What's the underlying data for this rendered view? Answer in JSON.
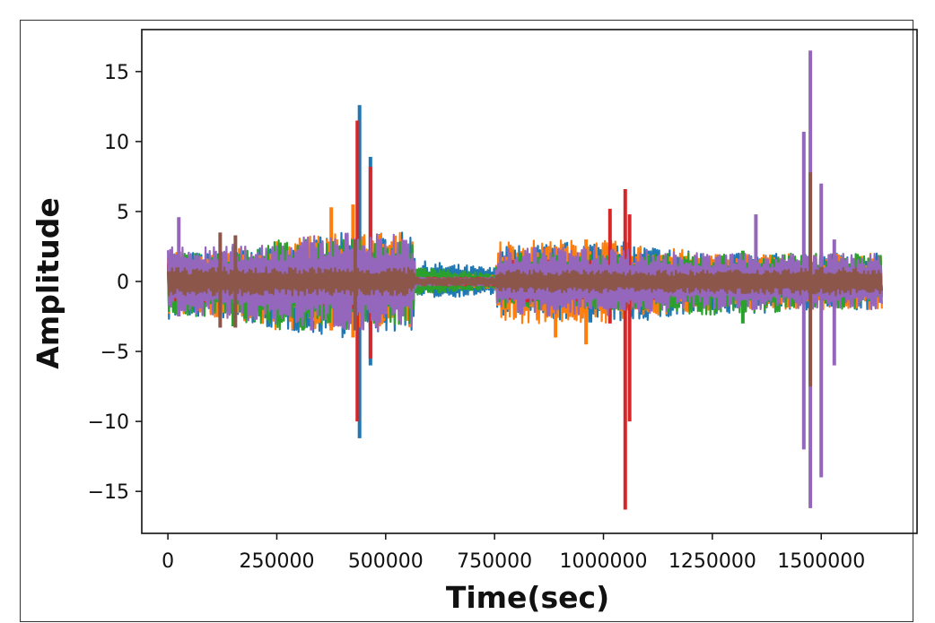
{
  "chart_data": {
    "type": "line",
    "title": "",
    "xlabel": "Time(sec)",
    "ylabel": "Amplitude",
    "xlim": [
      -60000,
      1720000
    ],
    "ylim": [
      -18,
      18
    ],
    "x_ticks": [
      {
        "value": 0,
        "label": "0"
      },
      {
        "value": 250000,
        "label": "250000"
      },
      {
        "value": 500000,
        "label": "500000"
      },
      {
        "value": 750000,
        "label": "750000"
      },
      {
        "value": 1000000,
        "label": "1000000"
      },
      {
        "value": 1250000,
        "label": "1250000"
      },
      {
        "value": 1500000,
        "label": "1500000"
      }
    ],
    "y_ticks": [
      {
        "value": 15,
        "label": "15"
      },
      {
        "value": 10,
        "label": "10"
      },
      {
        "value": 5,
        "label": "5"
      },
      {
        "value": 0,
        "label": "0"
      },
      {
        "value": -5,
        "label": "−5"
      },
      {
        "value": -10,
        "label": "−10"
      },
      {
        "value": -15,
        "label": "−15"
      }
    ],
    "grid": false,
    "legend": "none",
    "series": [
      {
        "color": "#1f77b4",
        "envelope": [
          [
            0,
            2.3,
            -2.8
          ],
          [
            100000,
            2,
            -2.5
          ],
          [
            250000,
            2.5,
            -3.5
          ],
          [
            400000,
            3.5,
            -4
          ],
          [
            560000,
            3.5,
            -3.5
          ],
          [
            570000,
            1.5,
            -1.2
          ],
          [
            750000,
            1,
            -1
          ],
          [
            760000,
            2.5,
            -2.5
          ],
          [
            1000000,
            3,
            -3
          ],
          [
            1250000,
            2,
            -2.5
          ],
          [
            1500000,
            2,
            -2
          ],
          [
            1640000,
            2,
            -2
          ]
        ],
        "peaks": [
          [
            440000,
            12.6,
            -11.2
          ],
          [
            465000,
            8.9,
            -6
          ]
        ]
      },
      {
        "color": "#ff7f0e",
        "envelope": [
          [
            0,
            2.3,
            -2.5
          ],
          [
            100000,
            2,
            -2.5
          ],
          [
            250000,
            3,
            -3.5
          ],
          [
            400000,
            3.5,
            -3.5
          ],
          [
            560000,
            3.5,
            -3.5
          ],
          [
            570000,
            0.5,
            -0.5
          ],
          [
            750000,
            0.5,
            -0.5
          ],
          [
            760000,
            3,
            -3
          ],
          [
            1000000,
            3,
            -3
          ],
          [
            1250000,
            2,
            -2
          ],
          [
            1500000,
            2,
            -2
          ],
          [
            1640000,
            2,
            -2
          ]
        ],
        "peaks": [
          [
            375000,
            5.3,
            -3.5
          ],
          [
            425000,
            5.5,
            -4
          ],
          [
            890000,
            2.5,
            -4
          ],
          [
            960000,
            3,
            -4.5
          ]
        ]
      },
      {
        "color": "#2ca02c",
        "envelope": [
          [
            0,
            2,
            -2.5
          ],
          [
            100000,
            2,
            -2.5
          ],
          [
            250000,
            3,
            -3.5
          ],
          [
            400000,
            3,
            -3.5
          ],
          [
            560000,
            3,
            -3
          ],
          [
            570000,
            1.2,
            -1
          ],
          [
            750000,
            0.5,
            -0.5
          ],
          [
            760000,
            2,
            -2
          ],
          [
            1000000,
            2,
            -2
          ],
          [
            1250000,
            2,
            -2.5
          ],
          [
            1500000,
            2,
            -2
          ],
          [
            1640000,
            2,
            -2
          ]
        ],
        "peaks": [
          [
            150000,
            2.5,
            -3.2
          ],
          [
            310000,
            2,
            -3.5
          ],
          [
            1320000,
            2.2,
            -3
          ]
        ]
      },
      {
        "color": "#d62728",
        "envelope": [
          [
            0,
            1.5,
            -1.5
          ],
          [
            100000,
            1.5,
            -1.5
          ],
          [
            250000,
            1.5,
            -1.5
          ],
          [
            400000,
            2,
            -2
          ],
          [
            560000,
            1.5,
            -1.5
          ],
          [
            570000,
            0.3,
            -0.3
          ],
          [
            750000,
            0.3,
            -0.3
          ],
          [
            760000,
            1.5,
            -1.5
          ],
          [
            1000000,
            1.5,
            -1.5
          ],
          [
            1250000,
            1,
            -1
          ],
          [
            1500000,
            1,
            -1
          ],
          [
            1640000,
            1,
            -1
          ]
        ],
        "peaks": [
          [
            435000,
            11.5,
            -10
          ],
          [
            465000,
            8.2,
            -5.5
          ],
          [
            1015000,
            5.2,
            -3
          ],
          [
            1050000,
            6.6,
            -16.3
          ],
          [
            1060000,
            4.8,
            -10
          ]
        ]
      },
      {
        "color": "#9467bd",
        "envelope": [
          [
            0,
            2.5,
            -2.5
          ],
          [
            100000,
            2.5,
            -2.5
          ],
          [
            250000,
            3,
            -3
          ],
          [
            400000,
            3.5,
            -3.5
          ],
          [
            560000,
            3.5,
            -3.5
          ],
          [
            570000,
            0.3,
            -0.3
          ],
          [
            750000,
            0.3,
            -0.3
          ],
          [
            760000,
            2.5,
            -2.5
          ],
          [
            1000000,
            2.5,
            -2.5
          ],
          [
            1250000,
            2,
            -2
          ],
          [
            1500000,
            2,
            -2
          ],
          [
            1640000,
            2,
            -2
          ]
        ],
        "peaks": [
          [
            25000,
            4.6,
            -2.5
          ],
          [
            330000,
            2.8,
            -3.5
          ],
          [
            1350000,
            4.8,
            -2
          ],
          [
            1460000,
            10.7,
            -12
          ],
          [
            1475000,
            16.5,
            -16.2
          ],
          [
            1500000,
            7,
            -14
          ],
          [
            1530000,
            3,
            -6
          ]
        ]
      },
      {
        "color": "#8c564b",
        "envelope": [
          [
            0,
            1,
            -1
          ],
          [
            100000,
            1,
            -1
          ],
          [
            250000,
            1,
            -1
          ],
          [
            400000,
            1,
            -1
          ],
          [
            560000,
            1,
            -1
          ],
          [
            570000,
            0.3,
            -0.3
          ],
          [
            750000,
            0.3,
            -0.3
          ],
          [
            760000,
            0.8,
            -0.8
          ],
          [
            1000000,
            0.8,
            -0.8
          ],
          [
            1250000,
            0.8,
            -0.8
          ],
          [
            1500000,
            1,
            -1
          ],
          [
            1640000,
            1,
            -1
          ]
        ],
        "peaks": [
          [
            120000,
            3.5,
            -3.3
          ],
          [
            155000,
            3.3,
            -3.3
          ],
          [
            430000,
            3,
            -3.5
          ],
          [
            1475000,
            7.8,
            -7.5
          ]
        ]
      }
    ]
  }
}
